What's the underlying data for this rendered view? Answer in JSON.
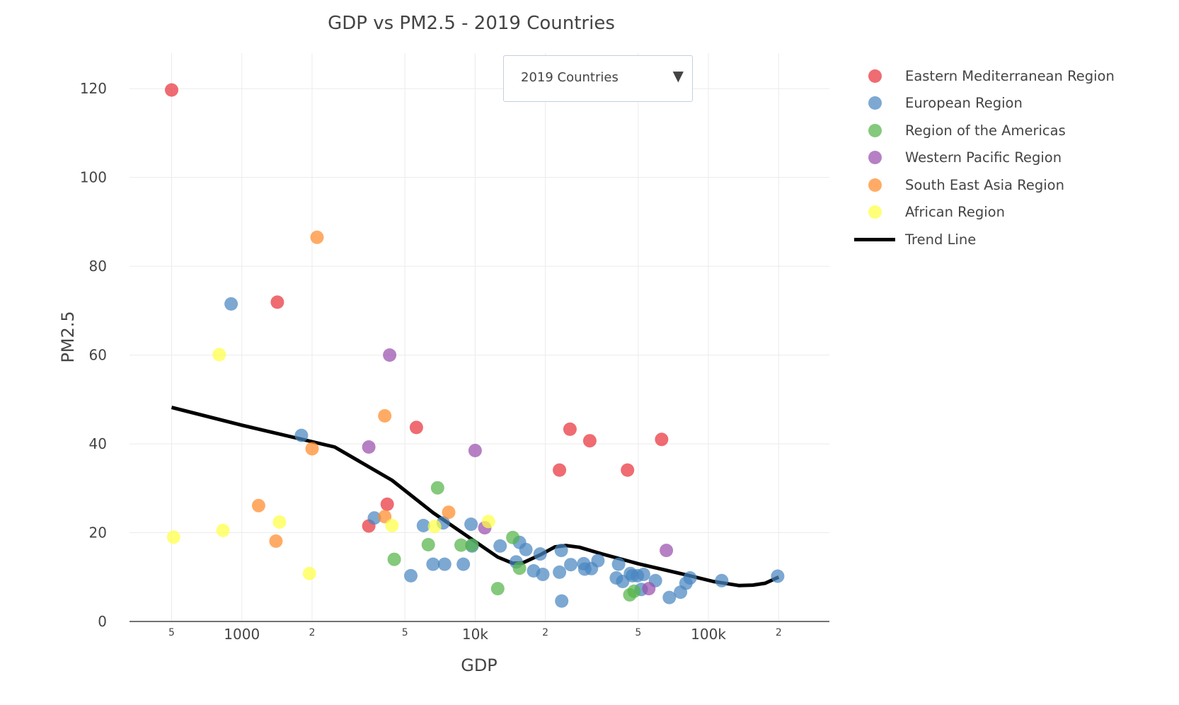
{
  "chart_data": {
    "type": "scatter",
    "title": "GDP vs PM2.5 - 2019 Countries",
    "xlabel": "GDP",
    "ylabel": "PM2.5",
    "x_scale": "log",
    "xlim": [
      330,
      330000
    ],
    "ylim": [
      0,
      128
    ],
    "grid": true,
    "legend_position": "right",
    "x_ticks": [
      {
        "value": 500,
        "label": "5",
        "minor": true
      },
      {
        "value": 1000,
        "label": "1000",
        "minor": false
      },
      {
        "value": 2000,
        "label": "2",
        "minor": true
      },
      {
        "value": 5000,
        "label": "5",
        "minor": true
      },
      {
        "value": 10000,
        "label": "10k",
        "minor": false
      },
      {
        "value": 20000,
        "label": "2",
        "minor": true
      },
      {
        "value": 50000,
        "label": "5",
        "minor": true
      },
      {
        "value": 100000,
        "label": "100k",
        "minor": false
      },
      {
        "value": 200000,
        "label": "2",
        "minor": true
      }
    ],
    "y_ticks": [
      {
        "value": 0,
        "label": "0"
      },
      {
        "value": 20,
        "label": "20"
      },
      {
        "value": 40,
        "label": "40"
      },
      {
        "value": 60,
        "label": "60"
      },
      {
        "value": 80,
        "label": "80"
      },
      {
        "value": 100,
        "label": "100"
      },
      {
        "value": 120,
        "label": "120"
      }
    ],
    "series": [
      {
        "name": "Eastern Mediterranean Region",
        "color": "#e8333c",
        "points": [
          [
            500,
            119.7
          ],
          [
            1420,
            71.9
          ],
          [
            3500,
            21.5
          ],
          [
            4200,
            26.4
          ],
          [
            5600,
            43.7
          ],
          [
            23000,
            34.1
          ],
          [
            25500,
            43.3
          ],
          [
            31000,
            40.7
          ],
          [
            45000,
            34.1
          ],
          [
            63000,
            41.0
          ]
        ]
      },
      {
        "name": "European Region",
        "color": "#4a86c0",
        "points": [
          [
            900,
            71.5
          ],
          [
            1800,
            41.9
          ],
          [
            3700,
            23.3
          ],
          [
            5300,
            10.3
          ],
          [
            6000,
            21.6
          ],
          [
            6600,
            12.9
          ],
          [
            7300,
            22.2
          ],
          [
            7400,
            12.9
          ],
          [
            8900,
            12.9
          ],
          [
            9600,
            21.9
          ],
          [
            9700,
            17.0
          ],
          [
            12800,
            17.0
          ],
          [
            15000,
            13.4
          ],
          [
            15500,
            17.8
          ],
          [
            16500,
            16.2
          ],
          [
            17800,
            11.4
          ],
          [
            19000,
            15.2
          ],
          [
            19500,
            10.6
          ],
          [
            23000,
            11.1
          ],
          [
            23400,
            16.0
          ],
          [
            23500,
            4.6
          ],
          [
            25700,
            12.8
          ],
          [
            29200,
            13.0
          ],
          [
            29500,
            11.8
          ],
          [
            31500,
            11.9
          ],
          [
            33600,
            13.7
          ],
          [
            40300,
            9.8
          ],
          [
            41200,
            12.9
          ],
          [
            42900,
            9.0
          ],
          [
            46300,
            10.8
          ],
          [
            47200,
            10.3
          ],
          [
            49600,
            10.3
          ],
          [
            51500,
            7.2
          ],
          [
            52700,
            10.6
          ],
          [
            59300,
            9.2
          ],
          [
            68000,
            5.4
          ],
          [
            75900,
            6.6
          ],
          [
            80100,
            8.6
          ],
          [
            83400,
            9.8
          ],
          [
            114000,
            9.2
          ],
          [
            198000,
            10.2
          ]
        ]
      },
      {
        "name": "Region of the Americas",
        "color": "#55b44a",
        "points": [
          [
            4500,
            14.0
          ],
          [
            6300,
            17.3
          ],
          [
            6900,
            30.1
          ],
          [
            8700,
            17.2
          ],
          [
            9700,
            17.2
          ],
          [
            12500,
            7.4
          ],
          [
            14500,
            18.9
          ],
          [
            15500,
            12.0
          ],
          [
            46000,
            6.0
          ],
          [
            48000,
            6.8
          ]
        ]
      },
      {
        "name": "Western Pacific Region",
        "color": "#9a4fad",
        "points": [
          [
            3500,
            39.3
          ],
          [
            4300,
            60.0
          ],
          [
            10000,
            38.5
          ],
          [
            11000,
            21.1
          ],
          [
            55500,
            7.4
          ],
          [
            66000,
            16.0
          ]
        ]
      },
      {
        "name": "South East Asia Region",
        "color": "#ff8a2a",
        "points": [
          [
            1180,
            26.1
          ],
          [
            1400,
            18.1
          ],
          [
            2000,
            38.9
          ],
          [
            2100,
            86.5
          ],
          [
            4100,
            46.3
          ],
          [
            4100,
            23.6
          ],
          [
            7700,
            24.6
          ]
        ]
      },
      {
        "name": "African Region",
        "color": "#ffff44",
        "points": [
          [
            510,
            19.0
          ],
          [
            800,
            60.1
          ],
          [
            830,
            20.5
          ],
          [
            1450,
            22.4
          ],
          [
            1950,
            10.8
          ],
          [
            4400,
            21.6
          ],
          [
            6700,
            21.4
          ],
          [
            11400,
            22.5
          ]
        ]
      },
      {
        "name": "Trend Line",
        "color": "#000000",
        "line": true,
        "points": [
          [
            500,
            48.2
          ],
          [
            1000,
            44.2
          ],
          [
            2500,
            39.3
          ],
          [
            4400,
            31.8
          ],
          [
            6600,
            24.5
          ],
          [
            10000,
            18.0
          ],
          [
            12500,
            14.5
          ],
          [
            14500,
            13.1
          ],
          [
            16000,
            13.2
          ],
          [
            19000,
            15.0
          ],
          [
            22000,
            16.8
          ],
          [
            24500,
            17.1
          ],
          [
            28000,
            16.7
          ],
          [
            35000,
            15.2
          ],
          [
            50000,
            13.0
          ],
          [
            80000,
            10.5
          ],
          [
            105000,
            9.0
          ],
          [
            135000,
            8.1
          ],
          [
            155000,
            8.2
          ],
          [
            175000,
            8.6
          ],
          [
            200000,
            10.0
          ]
        ]
      }
    ]
  },
  "dropdown": {
    "label": "2019 Countries",
    "caret": "▼"
  }
}
